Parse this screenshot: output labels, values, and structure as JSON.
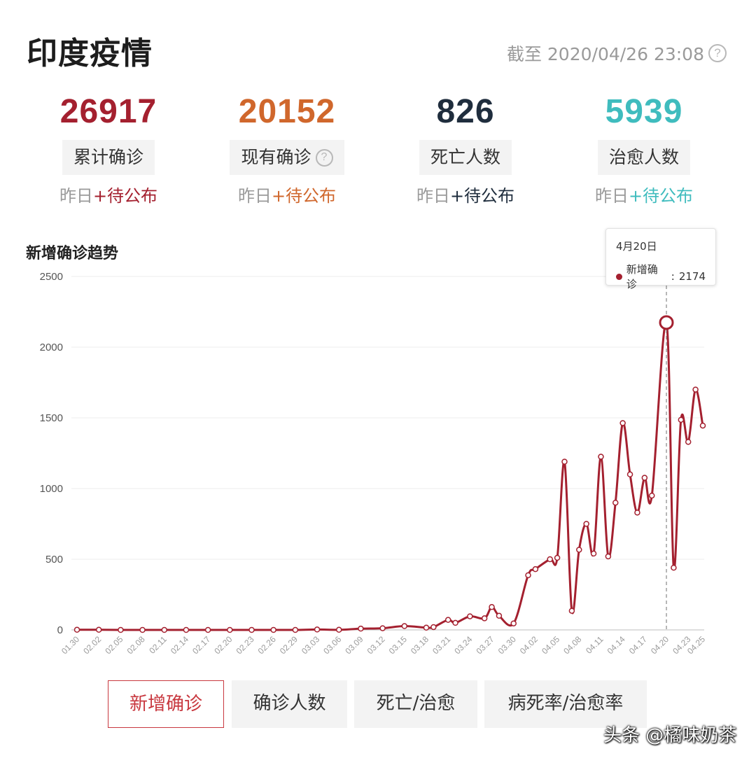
{
  "header": {
    "title": "印度疫情",
    "as_of": "截至 2020/04/26 23:08"
  },
  "stats": [
    {
      "value": "26917",
      "label": "累计确诊",
      "delta_prefix": "昨日",
      "delta_value": "+待公布",
      "color": "#a4202f",
      "help": false
    },
    {
      "value": "20152",
      "label": "现有确诊",
      "delta_prefix": "昨日",
      "delta_value": "+待公布",
      "color": "#d0672c",
      "help": true
    },
    {
      "value": "826",
      "label": "死亡人数",
      "delta_prefix": "昨日",
      "delta_value": "+待公布",
      "color": "#1f2d3d",
      "help": false
    },
    {
      "value": "5939",
      "label": "治愈人数",
      "delta_prefix": "昨日",
      "delta_value": "+待公布",
      "color": "#3fbcbe",
      "help": false
    }
  ],
  "chart_data": {
    "type": "line",
    "title": "新增确诊趋势",
    "color": "#a4202f",
    "ylim": [
      0,
      2500
    ],
    "yticks": [
      0,
      500,
      1000,
      1500,
      2000,
      2500
    ],
    "grid": true,
    "x_tick_labels": [
      "01.30",
      "02.02",
      "02.05",
      "02.08",
      "02.11",
      "02.14",
      "02.17",
      "02.20",
      "02.23",
      "02.26",
      "02.29",
      "03.03",
      "03.06",
      "03.09",
      "03.12",
      "03.15",
      "03.18",
      "03.21",
      "03.24",
      "03.27",
      "03.30",
      "04.02",
      "04.05",
      "04.08",
      "04.11",
      "04.14",
      "04.17",
      "04.20",
      "04.23",
      "04.25"
    ],
    "series": [
      {
        "name": "新增确诊",
        "points": [
          [
            "01.30",
            1
          ],
          [
            "02.02",
            1
          ],
          [
            "02.05",
            0
          ],
          [
            "02.08",
            0
          ],
          [
            "02.11",
            0
          ],
          [
            "02.14",
            0
          ],
          [
            "02.17",
            0
          ],
          [
            "02.20",
            0
          ],
          [
            "02.23",
            0
          ],
          [
            "02.26",
            0
          ],
          [
            "02.29",
            0
          ],
          [
            "03.03",
            3
          ],
          [
            "03.06",
            1
          ],
          [
            "03.09",
            9
          ],
          [
            "03.12",
            12
          ],
          [
            "03.15",
            27
          ],
          [
            "03.18",
            16
          ],
          [
            "03.19",
            20
          ],
          [
            "03.21",
            71
          ],
          [
            "03.22",
            50
          ],
          [
            "03.24",
            96
          ],
          [
            "03.26",
            82
          ],
          [
            "03.27",
            162
          ],
          [
            "03.28",
            100
          ],
          [
            "03.30",
            46
          ],
          [
            "04.01",
            387
          ],
          [
            "04.02",
            430
          ],
          [
            "04.04",
            500
          ],
          [
            "04.05",
            510
          ],
          [
            "04.06",
            1190
          ],
          [
            "04.07",
            135
          ],
          [
            "04.08",
            567
          ],
          [
            "04.09",
            750
          ],
          [
            "04.10",
            540
          ],
          [
            "04.11",
            1225
          ],
          [
            "04.12",
            520
          ],
          [
            "04.13",
            900
          ],
          [
            "04.14",
            1463
          ],
          [
            "04.15",
            1100
          ],
          [
            "04.16",
            830
          ],
          [
            "04.17",
            1076
          ],
          [
            "04.18",
            950
          ],
          [
            "04.20",
            2174
          ],
          [
            "04.21",
            440
          ],
          [
            "04.22",
            1486
          ],
          [
            "04.23",
            1330
          ],
          [
            "04.24",
            1700
          ],
          [
            "04.25",
            1445
          ]
        ]
      }
    ],
    "highlight": {
      "date": "04.20",
      "label": "4月20日",
      "value": 2174
    }
  },
  "tooltip": {
    "date": "4月20日",
    "series": "新增确诊",
    "value": "2174"
  },
  "tabs": [
    {
      "label": "新增确诊",
      "active": true
    },
    {
      "label": "确诊人数",
      "active": false
    },
    {
      "label": "死亡/治愈",
      "active": false
    },
    {
      "label": "病死率/治愈率",
      "active": false
    }
  ],
  "watermark": "头条 @橘味奶茶",
  "icons": {
    "help": "help-circle-icon"
  }
}
